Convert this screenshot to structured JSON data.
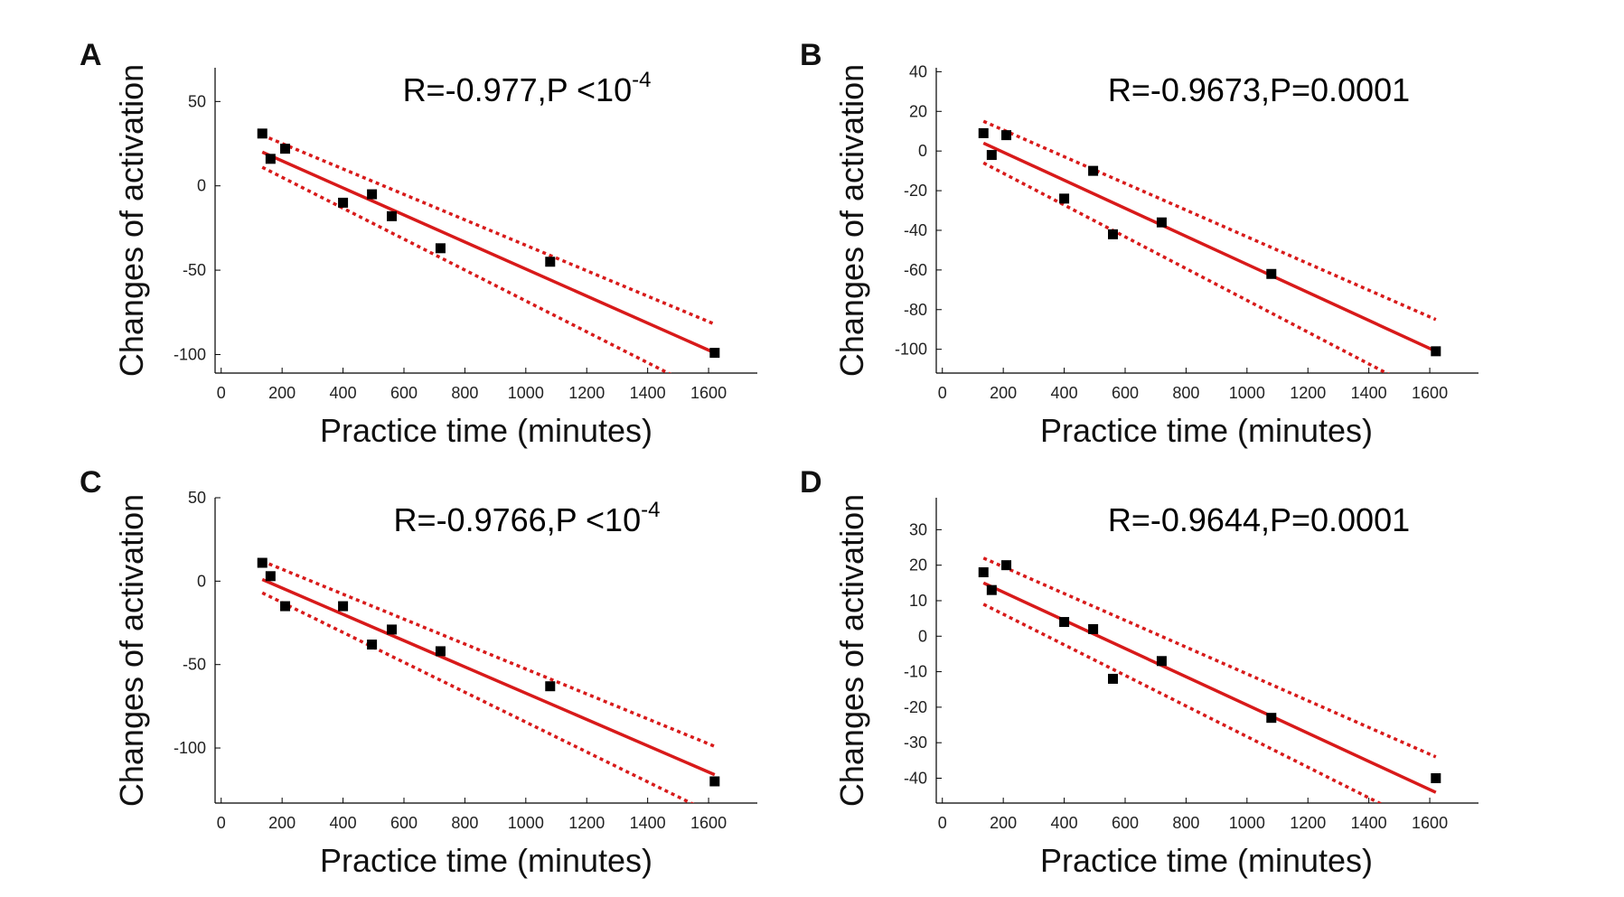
{
  "figure": {
    "background": "#ffffff",
    "fit_color": "#d81a1a",
    "point_color": "#000000"
  },
  "chart_data": [
    {
      "type": "scatter",
      "panel": "A",
      "stat": {
        "prefix": "R=-0.977,P <10",
        "sup": "-4"
      },
      "xlabel": "Practice time (minutes)",
      "ylabel": "Changes of activation",
      "xlim": [
        -20,
        1760
      ],
      "ylim": [
        -111,
        70
      ],
      "xticks": [
        0,
        200,
        400,
        600,
        800,
        1000,
        1200,
        1400,
        1600
      ],
      "yticks": [
        50,
        0,
        -50,
        -100
      ],
      "points": [
        [
          135,
          31
        ],
        [
          162,
          16
        ],
        [
          210,
          22
        ],
        [
          400,
          -10
        ],
        [
          495,
          -5
        ],
        [
          560,
          -18
        ],
        [
          720,
          -37
        ],
        [
          1080,
          -45
        ],
        [
          1620,
          -99
        ]
      ],
      "fit": [
        [
          135,
          20
        ],
        [
          1620,
          -99
        ]
      ],
      "ci_upper": [
        [
          135,
          30
        ],
        [
          1620,
          -82
        ]
      ],
      "ci_lower": [
        [
          135,
          11
        ],
        [
          1620,
          -125
        ]
      ]
    },
    {
      "type": "scatter",
      "panel": "B",
      "stat": {
        "prefix": "R=-0.9673,P=0.0001",
        "sup": ""
      },
      "xlabel": "Practice time (minutes)",
      "ylabel": "Changes of activation",
      "xlim": [
        -20,
        1760
      ],
      "ylim": [
        -112,
        42
      ],
      "xticks": [
        0,
        200,
        400,
        600,
        800,
        1000,
        1200,
        1400,
        1600
      ],
      "yticks": [
        40,
        20,
        0,
        -20,
        -40,
        -60,
        -80,
        -100
      ],
      "points": [
        [
          135,
          9
        ],
        [
          162,
          -2
        ],
        [
          210,
          8
        ],
        [
          400,
          -24
        ],
        [
          495,
          -10
        ],
        [
          560,
          -42
        ],
        [
          720,
          -36
        ],
        [
          1080,
          -62
        ],
        [
          1620,
          -101
        ]
      ],
      "fit": [
        [
          135,
          4
        ],
        [
          1620,
          -101
        ]
      ],
      "ci_upper": [
        [
          135,
          15
        ],
        [
          1620,
          -85
        ]
      ],
      "ci_lower": [
        [
          135,
          -6
        ],
        [
          1620,
          -125
        ]
      ]
    },
    {
      "type": "scatter",
      "panel": "C",
      "stat": {
        "prefix": "R=-0.9766,P <10",
        "sup": "-4"
      },
      "xlabel": "Practice time (minutes)",
      "ylabel": "Changes of activation",
      "xlim": [
        -20,
        1760
      ],
      "ylim": [
        -133,
        50
      ],
      "xticks": [
        0,
        200,
        400,
        600,
        800,
        1000,
        1200,
        1400,
        1600
      ],
      "yticks": [
        50,
        0,
        -50,
        -100
      ],
      "points": [
        [
          135,
          11
        ],
        [
          162,
          3
        ],
        [
          210,
          -15
        ],
        [
          400,
          -15
        ],
        [
          495,
          -38
        ],
        [
          560,
          -29
        ],
        [
          720,
          -42
        ],
        [
          1080,
          -63
        ],
        [
          1620,
          -120
        ]
      ],
      "fit": [
        [
          135,
          1
        ],
        [
          1620,
          -116
        ]
      ],
      "ci_upper": [
        [
          135,
          12
        ],
        [
          1620,
          -99
        ]
      ],
      "ci_lower": [
        [
          135,
          -7
        ],
        [
          1620,
          -140
        ]
      ]
    },
    {
      "type": "scatter",
      "panel": "D",
      "stat": {
        "prefix": "R=-0.9644,P=0.0001",
        "sup": ""
      },
      "xlabel": "Practice time (minutes)",
      "ylabel": "Changes of activation",
      "xlim": [
        -20,
        1760
      ],
      "ylim": [
        -47,
        39
      ],
      "xticks": [
        0,
        200,
        400,
        600,
        800,
        1000,
        1200,
        1400,
        1600
      ],
      "yticks": [
        30,
        20,
        10,
        0,
        -10,
        -20,
        -30,
        -40
      ],
      "points": [
        [
          135,
          18
        ],
        [
          162,
          13
        ],
        [
          210,
          20
        ],
        [
          400,
          4
        ],
        [
          495,
          2
        ],
        [
          560,
          -12
        ],
        [
          720,
          -7
        ],
        [
          1080,
          -23
        ],
        [
          1620,
          -40
        ]
      ],
      "fit": [
        [
          135,
          15
        ],
        [
          1620,
          -44
        ]
      ],
      "ci_upper": [
        [
          135,
          22
        ],
        [
          1620,
          -34
        ]
      ],
      "ci_lower": [
        [
          135,
          9
        ],
        [
          1620,
          -55
        ]
      ]
    }
  ]
}
